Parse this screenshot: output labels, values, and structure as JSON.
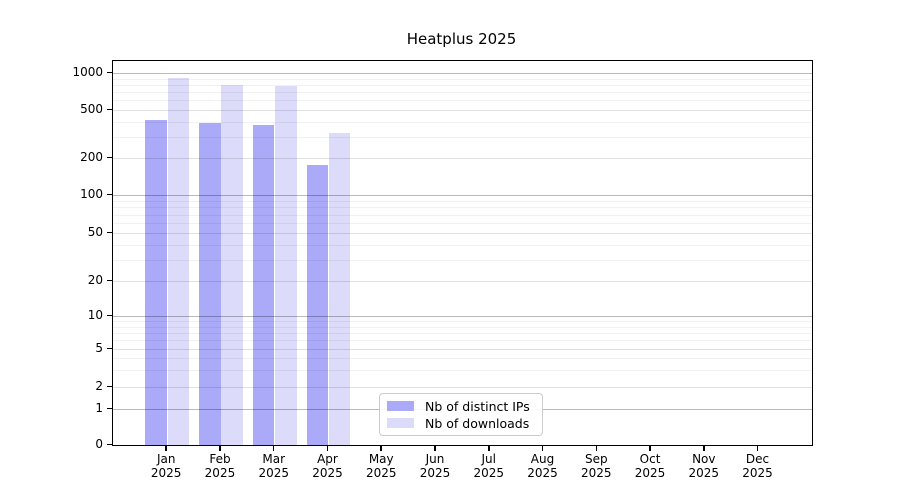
{
  "chart_data": {
    "type": "bar",
    "title": "Heatplus 2025",
    "xlabel": "",
    "ylabel": "",
    "categories": [
      "Jan",
      "Feb",
      "Mar",
      "Apr",
      "May",
      "Jun",
      "Jul",
      "Aug",
      "Sep",
      "Oct",
      "Nov",
      "Dec"
    ],
    "category_year": "2025",
    "series": [
      {
        "name": "Nb of distinct IPs",
        "color": "#aaaaf8",
        "values": [
          415,
          390,
          378,
          176,
          0,
          0,
          0,
          0,
          0,
          0,
          0,
          0
        ]
      },
      {
        "name": "Nb of downloads",
        "color": "#dcdcfa",
        "values": [
          910,
          795,
          788,
          320,
          0,
          0,
          0,
          0,
          0,
          0,
          0,
          0
        ]
      }
    ],
    "y_ticks": [
      0,
      1,
      2,
      5,
      10,
      20,
      50,
      100,
      200,
      500,
      1000
    ],
    "y_minor_ticks": [
      3,
      4,
      6,
      7,
      8,
      9,
      30,
      40,
      60,
      70,
      80,
      90,
      300,
      400,
      600,
      700,
      800,
      900
    ],
    "yscale": "symlog",
    "ylim": [
      0,
      1250
    ],
    "grid": "horizontal",
    "legend_position": "lower center",
    "spine_color": "#000000",
    "background_color": "#ffffff"
  }
}
